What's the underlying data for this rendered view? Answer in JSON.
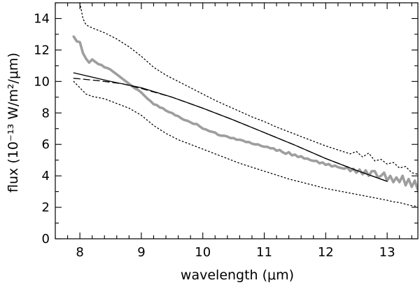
{
  "chart_data": {
    "type": "line",
    "xlabel": "wavelength (μm)",
    "ylabel": "flux (10⁻¹³ W/m²/μm)",
    "xlim": [
      7.6,
      13.5
    ],
    "ylim": [
      0,
      15
    ],
    "xticks": [
      8,
      9,
      10,
      11,
      12,
      13
    ],
    "yticks": [
      0,
      2,
      4,
      6,
      8,
      10,
      12,
      14
    ],
    "grid": false,
    "legend": "none",
    "series": [
      {
        "style": "thick-gray",
        "color": "#9e9e9e",
        "x": [
          7.9,
          7.95,
          8.0,
          8.05,
          8.1,
          8.15,
          8.2,
          8.25,
          8.3,
          8.35,
          8.4,
          8.45,
          8.5,
          8.55,
          8.6,
          8.65,
          8.7,
          8.75,
          8.8,
          8.85,
          8.9,
          8.95,
          9.0,
          9.05,
          9.1,
          9.15,
          9.2,
          9.25,
          9.3,
          9.35,
          9.4,
          9.45,
          9.5,
          9.55,
          9.6,
          9.65,
          9.7,
          9.75,
          9.8,
          9.85,
          9.9,
          9.95,
          10.0,
          10.05,
          10.1,
          10.15,
          10.2,
          10.25,
          10.3,
          10.35,
          10.4,
          10.45,
          10.5,
          10.55,
          10.6,
          10.65,
          10.7,
          10.75,
          10.8,
          10.85,
          10.9,
          10.95,
          11.0,
          11.05,
          11.1,
          11.15,
          11.2,
          11.25,
          11.3,
          11.35,
          11.4,
          11.45,
          11.5,
          11.55,
          11.6,
          11.65,
          11.7,
          11.75,
          11.8,
          11.85,
          11.9,
          11.95,
          12.0,
          12.05,
          12.1,
          12.15,
          12.2,
          12.25,
          12.3,
          12.35,
          12.4,
          12.45,
          12.5,
          12.55,
          12.6,
          12.65,
          12.7,
          12.75,
          12.8,
          12.85,
          12.9,
          12.95,
          13.0,
          13.05,
          13.1,
          13.15,
          13.2,
          13.25,
          13.3,
          13.35,
          13.4,
          13.45,
          13.5
        ],
        "y": [
          12.85,
          12.55,
          12.5,
          11.8,
          11.45,
          11.2,
          11.4,
          11.25,
          11.1,
          11.05,
          10.9,
          10.85,
          10.75,
          10.6,
          10.45,
          10.3,
          10.15,
          10.0,
          9.85,
          9.7,
          9.55,
          9.45,
          9.3,
          9.1,
          8.9,
          8.75,
          8.55,
          8.5,
          8.35,
          8.3,
          8.15,
          8.05,
          8.0,
          7.85,
          7.8,
          7.65,
          7.55,
          7.5,
          7.4,
          7.3,
          7.3,
          7.15,
          7.0,
          6.95,
          6.85,
          6.8,
          6.75,
          6.6,
          6.55,
          6.55,
          6.5,
          6.4,
          6.4,
          6.3,
          6.3,
          6.25,
          6.15,
          6.15,
          6.05,
          6.0,
          6.0,
          5.9,
          5.85,
          5.85,
          5.75,
          5.75,
          5.6,
          5.65,
          5.5,
          5.4,
          5.5,
          5.3,
          5.35,
          5.2,
          5.25,
          5.1,
          5.1,
          5.0,
          4.95,
          4.95,
          4.8,
          4.85,
          4.7,
          4.75,
          4.6,
          4.65,
          4.55,
          4.5,
          4.45,
          4.55,
          4.3,
          4.45,
          4.2,
          4.4,
          4.1,
          4.35,
          4.0,
          4.3,
          4.3,
          3.9,
          4.0,
          4.2,
          3.7,
          4.0,
          3.6,
          3.9,
          3.6,
          4.0,
          3.4,
          3.8,
          3.3,
          3.7,
          3.1
        ]
      },
      {
        "style": "solid-thin",
        "color": "#000000",
        "x": [
          7.9,
          8.5,
          9.0,
          9.5,
          10.0,
          10.5,
          11.0,
          11.5,
          12.0,
          12.5,
          13.0
        ],
        "y": [
          10.55,
          10.0,
          9.6,
          9.0,
          8.3,
          7.55,
          6.75,
          5.95,
          5.1,
          4.35,
          3.65
        ]
      },
      {
        "style": "dashed-thin",
        "color": "#000000",
        "x": [
          7.9,
          8.3,
          8.7,
          9.0,
          9.5,
          10.0,
          10.5,
          11.0,
          11.5,
          12.0,
          12.5,
          13.0
        ],
        "y": [
          10.2,
          10.05,
          9.85,
          9.55,
          9.0,
          8.3,
          7.55,
          6.75,
          5.95,
          5.1,
          4.35,
          3.65
        ]
      },
      {
        "style": "dotted-upper",
        "color": "#000000",
        "x": [
          8.0,
          8.05,
          8.1,
          8.2,
          8.4,
          8.6,
          8.8,
          9.0,
          9.2,
          9.4,
          9.6,
          9.8,
          10.0,
          10.2,
          10.4,
          10.6,
          10.8,
          11.0,
          11.2,
          11.4,
          11.6,
          11.8,
          12.0,
          12.2,
          12.4,
          12.5,
          12.6,
          12.7,
          12.8,
          12.9,
          13.0,
          13.1,
          13.2,
          13.3,
          13.4,
          13.5
        ],
        "y": [
          15.0,
          14.0,
          13.6,
          13.4,
          13.1,
          12.7,
          12.2,
          11.6,
          10.9,
          10.4,
          10.0,
          9.6,
          9.2,
          8.8,
          8.45,
          8.1,
          7.75,
          7.45,
          7.1,
          6.8,
          6.5,
          6.2,
          5.9,
          5.65,
          5.4,
          5.55,
          5.2,
          5.45,
          4.95,
          5.05,
          4.75,
          4.85,
          4.5,
          4.6,
          4.2,
          4.1
        ]
      },
      {
        "style": "dotted-lower",
        "color": "#000000",
        "x": [
          7.9,
          8.0,
          8.1,
          8.2,
          8.4,
          8.6,
          8.8,
          9.0,
          9.2,
          9.4,
          9.6,
          9.8,
          10.0,
          10.2,
          10.4,
          10.6,
          10.8,
          11.0,
          11.2,
          11.4,
          11.6,
          11.8,
          12.0,
          12.2,
          12.4,
          12.6,
          12.8,
          13.0,
          13.1,
          13.2,
          13.3,
          13.4,
          13.5
        ],
        "y": [
          10.0,
          9.6,
          9.2,
          9.05,
          8.9,
          8.6,
          8.3,
          7.85,
          7.2,
          6.7,
          6.3,
          6.0,
          5.7,
          5.4,
          5.1,
          4.8,
          4.55,
          4.3,
          4.05,
          3.8,
          3.6,
          3.4,
          3.2,
          3.05,
          2.9,
          2.75,
          2.6,
          2.45,
          2.35,
          2.3,
          2.2,
          2.1,
          2.05
        ]
      }
    ]
  }
}
